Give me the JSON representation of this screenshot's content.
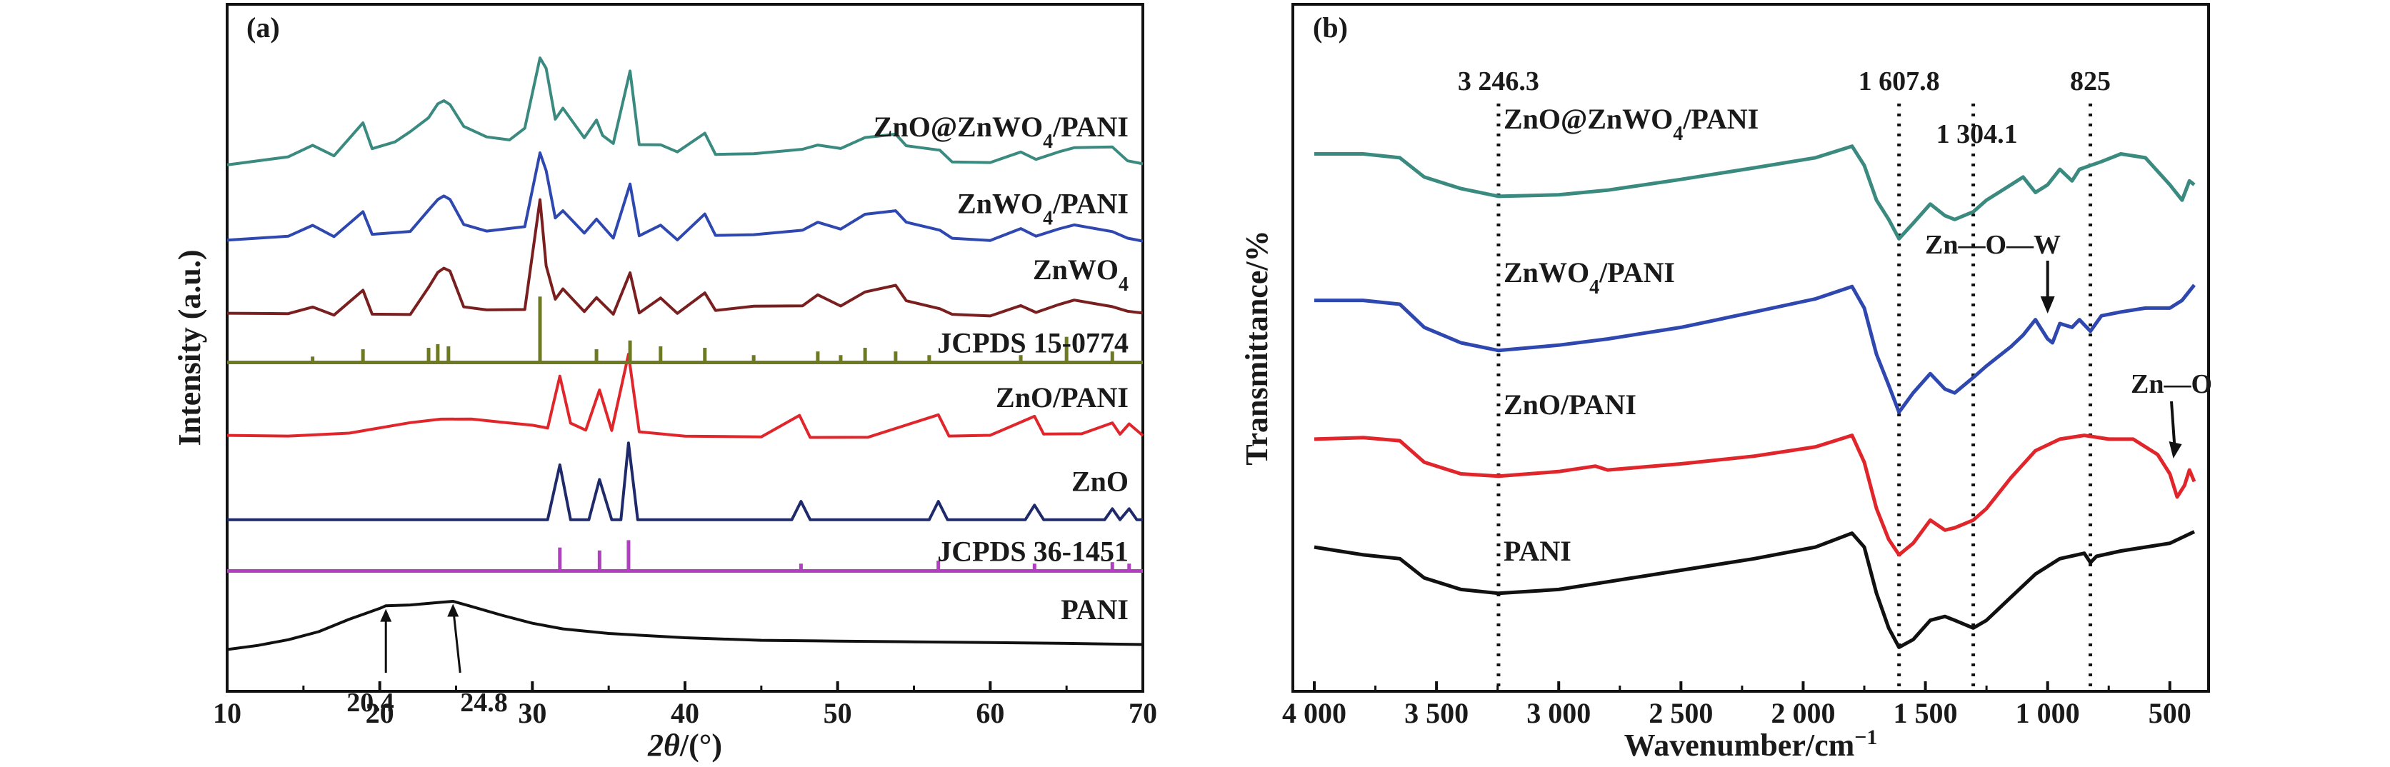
{
  "chart_data": [
    {
      "panel": "(a)",
      "type": "line",
      "xlabel": "2θ/(°)",
      "ylabel": "Intensity (a.u.)",
      "xlim": [
        10,
        70
      ],
      "xticks": [
        "10",
        "20",
        "30",
        "40",
        "50",
        "60",
        "70"
      ],
      "yticks": [],
      "series": [
        {
          "name": "ZnO@ZnWO4/PANI",
          "color": "#3a8a80",
          "baseline": 7.0,
          "x": [
            10,
            14,
            15.6,
            17,
            18.9,
            19.5,
            21,
            22,
            23.2,
            23.8,
            24.2,
            24.6,
            25.5,
            27,
            28.5,
            29.5,
            30.5,
            30.9,
            31.5,
            32.0,
            33.4,
            34.2,
            34.6,
            35.3,
            36.4,
            37,
            38.4,
            39.5,
            41.3,
            42,
            44.5,
            47.7,
            48.7,
            50.2,
            51.8,
            53.8,
            54.5,
            56.7,
            57.5,
            60,
            62,
            63,
            64.5,
            65.5,
            68,
            69,
            70
          ],
          "y": [
            7.0,
            7.1,
            7.25,
            7.1,
            7.55,
            7.2,
            7.3,
            7.45,
            7.65,
            7.85,
            7.9,
            7.85,
            7.55,
            7.4,
            7.35,
            7.5,
            8.45,
            8.3,
            7.6,
            7.75,
            7.35,
            7.6,
            7.4,
            7.3,
            8.3,
            7.3,
            7.3,
            7.2,
            7.45,
            7.15,
            7.15,
            7.2,
            7.25,
            7.2,
            7.35,
            7.4,
            7.25,
            7.2,
            7.05,
            7.05,
            7.2,
            7.1,
            7.2,
            7.25,
            7.25,
            7.05,
            7.0
          ]
        },
        {
          "name": "ZnWO4/PANI",
          "color": "#2e48b0",
          "baseline": 5.95,
          "x": [
            10,
            14,
            15.6,
            17,
            18.9,
            19.5,
            22,
            23.2,
            23.8,
            24.2,
            24.6,
            25.5,
            27,
            29.5,
            30.5,
            30.9,
            31.5,
            32.0,
            33.4,
            34.2,
            35.3,
            36.4,
            37,
            38.4,
            39.5,
            41.3,
            42,
            44.5,
            47.7,
            48.7,
            50.2,
            51.8,
            53.8,
            54.5,
            56.7,
            57.5,
            60,
            62,
            63,
            64.5,
            65.5,
            68,
            69,
            70
          ],
          "y": [
            5.95,
            6.0,
            6.15,
            6.0,
            6.35,
            6.05,
            6.1,
            6.4,
            6.55,
            6.6,
            6.55,
            6.2,
            6.1,
            6.15,
            7.15,
            6.9,
            6.25,
            6.35,
            6.05,
            6.25,
            6.0,
            6.75,
            6.05,
            6.2,
            6.0,
            6.35,
            6.05,
            6.05,
            6.1,
            6.2,
            6.1,
            6.3,
            6.35,
            6.2,
            6.1,
            6.0,
            5.98,
            6.15,
            6.05,
            6.15,
            6.2,
            6.1,
            6.0,
            5.95
          ]
        },
        {
          "name": "ZnWO4",
          "color": "#7a1f1f",
          "baseline": 4.95,
          "x": [
            10,
            14,
            15.6,
            17,
            18.9,
            19.5,
            22,
            23.2,
            23.8,
            24.2,
            24.6,
            25.5,
            27,
            29.5,
            30.5,
            30.9,
            31.5,
            32.0,
            33.4,
            34.2,
            35.3,
            36.4,
            37,
            38.4,
            39.5,
            41.3,
            42,
            44.5,
            47.7,
            48.7,
            50.2,
            51.8,
            53.8,
            54.5,
            56.7,
            57.5,
            60,
            62,
            63,
            64.5,
            65.5,
            68,
            69,
            70
          ],
          "y": [
            4.95,
            4.95,
            5.05,
            4.95,
            5.3,
            4.98,
            4.98,
            5.35,
            5.55,
            5.6,
            5.55,
            5.05,
            5.0,
            5.0,
            6.5,
            5.6,
            5.15,
            5.3,
            5.0,
            5.2,
            4.98,
            5.55,
            5.0,
            5.2,
            4.98,
            5.25,
            5.0,
            5.05,
            5.05,
            5.2,
            5.05,
            5.25,
            5.35,
            5.15,
            5.05,
            4.98,
            4.96,
            5.1,
            5.0,
            5.1,
            5.15,
            5.05,
            4.98,
            4.95
          ]
        },
        {
          "name": "ZnO/PANI",
          "color": "#e0262b",
          "baseline": 3.3,
          "x": [
            10,
            14,
            18,
            22,
            24,
            26,
            28,
            30,
            31.0,
            31.8,
            32.5,
            33.5,
            34.4,
            35.2,
            36.3,
            37,
            40,
            45,
            47.5,
            48.2,
            52,
            56.6,
            57.3,
            60,
            62.9,
            63.5,
            66,
            68.0,
            68.5,
            69.1,
            70
          ],
          "y": [
            3.3,
            3.3,
            3.35,
            3.5,
            3.55,
            3.55,
            3.5,
            3.45,
            3.4,
            4.1,
            3.45,
            3.35,
            3.9,
            3.35,
            4.4,
            3.35,
            3.3,
            3.3,
            3.6,
            3.3,
            3.3,
            3.6,
            3.3,
            3.3,
            3.55,
            3.3,
            3.3,
            3.45,
            3.3,
            3.45,
            3.3
          ]
        },
        {
          "name": "ZnO",
          "color": "#1e2a6a",
          "baseline": 2.15,
          "x": [
            10,
            31.0,
            31.8,
            32.5,
            33.7,
            34.4,
            35.2,
            35.8,
            36.3,
            36.9,
            47.0,
            47.6,
            48.2,
            56.0,
            56.6,
            57.2,
            62.3,
            62.9,
            63.5,
            67.5,
            68.0,
            68.5,
            69.1,
            69.6,
            70
          ],
          "y": [
            2.15,
            2.15,
            2.9,
            2.15,
            2.15,
            2.7,
            2.15,
            2.15,
            3.2,
            2.15,
            2.15,
            2.4,
            2.15,
            2.15,
            2.4,
            2.15,
            2.15,
            2.35,
            2.15,
            2.15,
            2.3,
            2.15,
            2.3,
            2.15,
            2.15
          ]
        },
        {
          "name": "PANI",
          "color": "#111111",
          "baseline": 0.4,
          "x": [
            10,
            12,
            14,
            16,
            18,
            20,
            20.4,
            22,
            24,
            24.8,
            26,
            28,
            30,
            32,
            35,
            40,
            45,
            50,
            55,
            60,
            65,
            70
          ],
          "y": [
            0.4,
            0.45,
            0.52,
            0.62,
            0.78,
            0.92,
            0.95,
            0.96,
            1.0,
            1.02,
            0.96,
            0.85,
            0.75,
            0.68,
            0.62,
            0.56,
            0.52,
            0.5,
            0.48,
            0.46,
            0.44,
            0.42
          ]
        }
      ],
      "labels": [
        {
          "text": "ZnO@ZnWO4/PANI",
          "bind_series": 0
        },
        {
          "text": "ZnWO4/PANI",
          "bind_series": 1
        },
        {
          "text": "ZnWO4",
          "bind_series": 2
        },
        {
          "text": "ZnO/PANI",
          "bind_series": 3
        },
        {
          "text": "ZnO",
          "bind_series": 4
        },
        {
          "text": "PANI",
          "bind_series": 5
        }
      ],
      "references": [
        {
          "name": "JCPDS 15-0774",
          "color": "#6e7a22",
          "baseline": 4.3,
          "peaks": [
            [
              15.6,
              0.08
            ],
            [
              18.9,
              0.18
            ],
            [
              23.2,
              0.2
            ],
            [
              23.8,
              0.25
            ],
            [
              24.5,
              0.22
            ],
            [
              30.5,
              0.9
            ],
            [
              34.2,
              0.18
            ],
            [
              36.4,
              0.3
            ],
            [
              38.4,
              0.22
            ],
            [
              41.3,
              0.2
            ],
            [
              44.5,
              0.1
            ],
            [
              48.7,
              0.15
            ],
            [
              50.2,
              0.1
            ],
            [
              51.8,
              0.2
            ],
            [
              53.8,
              0.15
            ],
            [
              56.0,
              0.1
            ],
            [
              62.0,
              0.1
            ],
            [
              65.0,
              0.35
            ],
            [
              68.0,
              0.15
            ]
          ]
        },
        {
          "name": "JCPDS 36-1451",
          "color": "#b040c0",
          "baseline": 1.45,
          "peaks": [
            [
              31.8,
              0.32
            ],
            [
              34.4,
              0.28
            ],
            [
              36.3,
              0.42
            ],
            [
              47.6,
              0.1
            ],
            [
              56.6,
              0.14
            ],
            [
              62.9,
              0.1
            ],
            [
              68.0,
              0.12
            ],
            [
              69.1,
              0.1
            ]
          ]
        }
      ],
      "annotations": [
        "20.4",
        "24.8"
      ]
    },
    {
      "panel": "(b)",
      "type": "line",
      "xlabel": "Wavenumber/cm−1",
      "ylabel": "Transmittance/%",
      "xlim": [
        4000,
        400
      ],
      "xticks": [
        "4 000",
        "3 500",
        "3 000",
        "2 500",
        "2 000",
        "1 500",
        "1 000",
        "500"
      ],
      "yticks": [],
      "series": [
        {
          "name": "ZnO@ZnWO4/PANI",
          "color": "#3a8a80",
          "x": [
            4000,
            3800,
            3650,
            3550,
            3400,
            3246,
            3000,
            2800,
            2500,
            2200,
            1950,
            1800,
            1750,
            1700,
            1650,
            1608,
            1550,
            1480,
            1420,
            1380,
            1304,
            1250,
            1150,
            1100,
            1050,
            1000,
            950,
            900,
            870,
            825,
            780,
            700,
            600,
            500,
            450,
            420,
            400
          ],
          "y": [
            6.6,
            6.6,
            6.55,
            6.3,
            6.15,
            6.05,
            6.07,
            6.13,
            6.27,
            6.42,
            6.55,
            6.7,
            6.45,
            6.0,
            5.75,
            5.5,
            5.7,
            5.95,
            5.8,
            5.75,
            5.85,
            6.0,
            6.2,
            6.3,
            6.1,
            6.2,
            6.4,
            6.25,
            6.4,
            6.45,
            6.5,
            6.6,
            6.55,
            6.2,
            6.0,
            6.25,
            6.2
          ]
        },
        {
          "name": "ZnWO4/PANI",
          "color": "#2e48b0",
          "x": [
            4000,
            3800,
            3650,
            3550,
            3400,
            3246,
            3000,
            2800,
            2500,
            2200,
            1950,
            1800,
            1750,
            1700,
            1650,
            1608,
            1550,
            1480,
            1420,
            1380,
            1304,
            1250,
            1150,
            1100,
            1050,
            1000,
            980,
            950,
            900,
            870,
            825,
            780,
            700,
            600,
            500,
            450,
            400
          ],
          "y": [
            4.7,
            4.7,
            4.65,
            4.35,
            4.15,
            4.05,
            4.12,
            4.2,
            4.35,
            4.55,
            4.72,
            4.88,
            4.6,
            4.0,
            3.6,
            3.25,
            3.5,
            3.75,
            3.55,
            3.5,
            3.7,
            3.85,
            4.1,
            4.25,
            4.45,
            4.2,
            4.15,
            4.4,
            4.35,
            4.45,
            4.3,
            4.5,
            4.55,
            4.6,
            4.6,
            4.7,
            4.9
          ]
        },
        {
          "name": "ZnO/PANI",
          "color": "#e0262b",
          "x": [
            4000,
            3800,
            3650,
            3550,
            3400,
            3246,
            3000,
            2850,
            2800,
            2500,
            2200,
            1950,
            1800,
            1750,
            1700,
            1650,
            1608,
            1550,
            1480,
            1420,
            1380,
            1304,
            1250,
            1150,
            1050,
            950,
            850,
            750,
            650,
            550,
            500,
            470,
            440,
            420,
            400
          ],
          "y": [
            2.9,
            2.92,
            2.88,
            2.6,
            2.45,
            2.42,
            2.48,
            2.55,
            2.5,
            2.58,
            2.68,
            2.8,
            2.95,
            2.6,
            2.0,
            1.6,
            1.4,
            1.55,
            1.85,
            1.72,
            1.75,
            1.85,
            2.0,
            2.4,
            2.75,
            2.9,
            2.95,
            2.9,
            2.9,
            2.7,
            2.45,
            2.15,
            2.3,
            2.5,
            2.35
          ]
        },
        {
          "name": "PANI",
          "color": "#111111",
          "x": [
            4000,
            3800,
            3650,
            3550,
            3400,
            3246,
            3000,
            2800,
            2500,
            2200,
            1950,
            1800,
            1750,
            1700,
            1650,
            1608,
            1550,
            1480,
            1420,
            1380,
            1304,
            1250,
            1150,
            1050,
            950,
            850,
            825,
            800,
            700,
            600,
            500,
            400
          ],
          "y": [
            1.5,
            1.4,
            1.35,
            1.1,
            0.95,
            0.9,
            0.95,
            1.05,
            1.2,
            1.35,
            1.5,
            1.68,
            1.5,
            0.9,
            0.45,
            0.2,
            0.3,
            0.55,
            0.6,
            0.55,
            0.45,
            0.55,
            0.85,
            1.15,
            1.35,
            1.42,
            1.3,
            1.38,
            1.45,
            1.5,
            1.55,
            1.7
          ]
        }
      ],
      "labels": [
        {
          "text": "ZnO@ZnWO4/PANI",
          "bind_series": 0
        },
        {
          "text": "ZnWO4/PANI",
          "bind_series": 1
        },
        {
          "text": "ZnO/PANI",
          "bind_series": 2
        },
        {
          "text": "PANI",
          "bind_series": 3
        }
      ],
      "vlines": [
        {
          "x": 3246.3,
          "label": "3 246.3"
        },
        {
          "x": 1607.8,
          "label": "1 607.8"
        },
        {
          "x": 1304.1,
          "label": "1 304.1"
        },
        {
          "x": 825,
          "label": "825"
        }
      ],
      "annotations": [
        "Zn—O—W",
        "Zn—O"
      ]
    }
  ]
}
